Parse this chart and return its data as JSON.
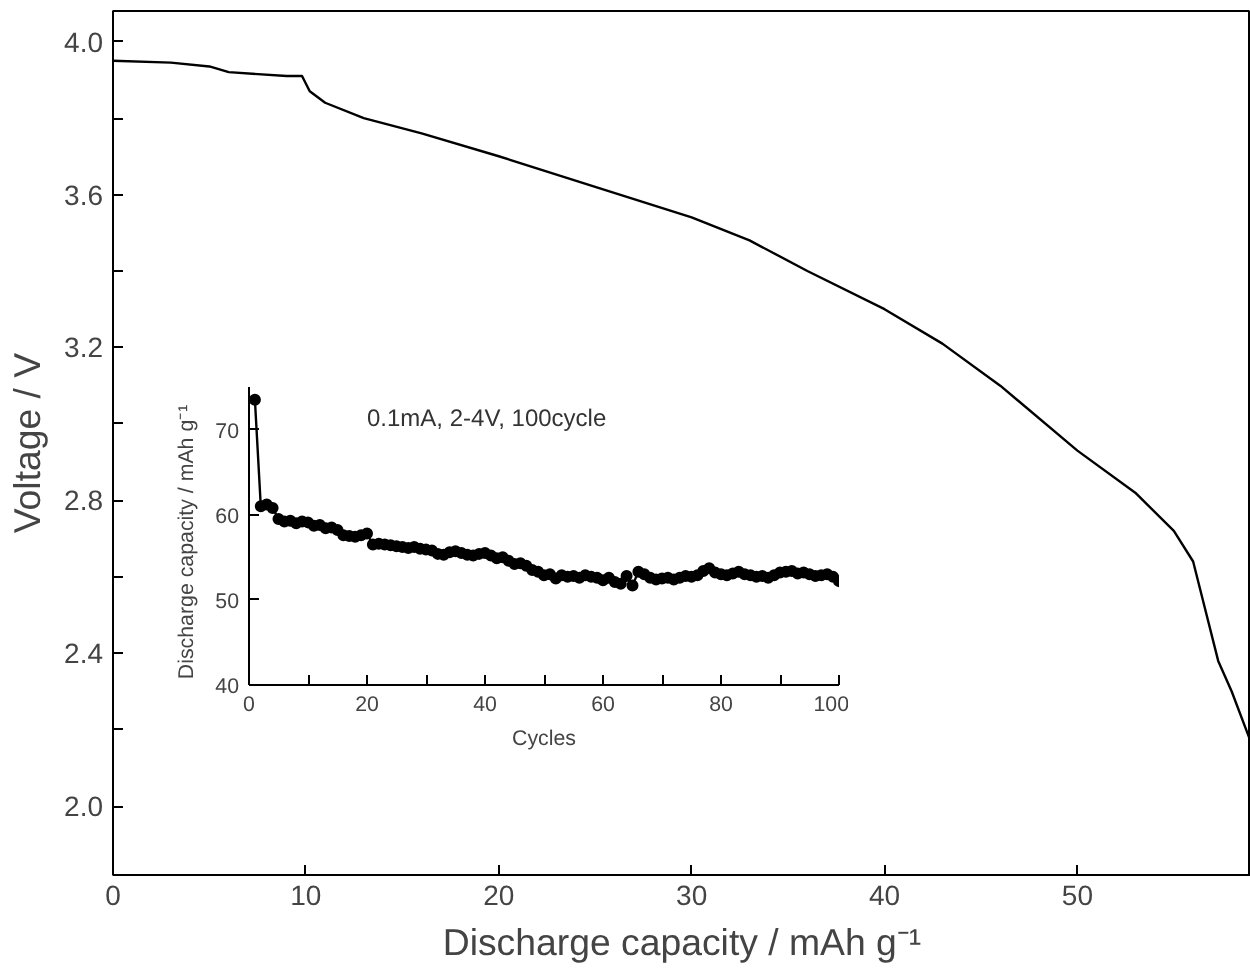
{
  "chart_data": [
    {
      "type": "line",
      "xlabel": "Discharge capacity / mAh g⁻¹",
      "ylabel": "Voltage / V",
      "xlim": [
        0,
        59
      ],
      "ylim": [
        1.82,
        4.08
      ],
      "xticks": [
        0,
        10,
        20,
        30,
        40,
        50
      ],
      "yticks": [
        {
          "value": 2.0,
          "label": "2.0"
        },
        {
          "value": 2.2,
          "label": null
        },
        {
          "value": 2.4,
          "label": "2.4"
        },
        {
          "value": 2.6,
          "label": null
        },
        {
          "value": 2.8,
          "label": "2.8"
        },
        {
          "value": 3.0,
          "label": null
        },
        {
          "value": 3.2,
          "label": "3.2"
        },
        {
          "value": 3.4,
          "label": null
        },
        {
          "value": 3.6,
          "label": "3.6"
        },
        {
          "value": 3.8,
          "label": null
        },
        {
          "value": 4.0,
          "label": "4.0"
        }
      ],
      "grid": false,
      "marker": "none",
      "line_style": "solid",
      "series": [
        {
          "color": "#000000",
          "x": [
            0,
            3,
            5,
            6,
            9,
            9.8,
            10.2,
            11,
            13,
            16,
            20,
            25,
            30,
            33,
            36,
            40,
            43,
            46,
            50,
            53,
            55,
            56,
            56.5,
            57.3,
            58,
            58.9
          ],
          "values": [
            3.95,
            3.945,
            3.935,
            3.92,
            3.91,
            3.91,
            3.87,
            3.84,
            3.8,
            3.76,
            3.7,
            3.62,
            3.54,
            3.48,
            3.4,
            3.3,
            3.21,
            3.1,
            2.93,
            2.82,
            2.72,
            2.64,
            2.54,
            2.38,
            2.3,
            2.18
          ]
        }
      ]
    },
    {
      "type": "line",
      "xlabel": "Cycles",
      "ylabel": "Discharge capacity  /  mAh g⁻¹",
      "annotations": [
        "0.1mA, 2-4V, 100cycle"
      ],
      "xlim": [
        0,
        100
      ],
      "ylim": [
        40,
        75
      ],
      "xticks": [
        0,
        {
          "value": 10,
          "label": null
        },
        20,
        {
          "value": 30,
          "label": null
        },
        40,
        {
          "value": 50,
          "label": null
        },
        60,
        {
          "value": 70,
          "label": null
        },
        80,
        {
          "value": 90,
          "label": null
        },
        100
      ],
      "yticks": [
        40,
        50,
        60,
        70
      ],
      "grid": false,
      "marker": "circle",
      "line_style": "solid",
      "series": [
        {
          "color": "#000000",
          "x": [
            1,
            2,
            3,
            4,
            5,
            6,
            7,
            8,
            9,
            10,
            11,
            12,
            13,
            14,
            15,
            16,
            17,
            18,
            19,
            20,
            21,
            22,
            23,
            24,
            25,
            26,
            27,
            28,
            29,
            30,
            31,
            32,
            33,
            34,
            35,
            36,
            37,
            38,
            39,
            40,
            41,
            42,
            43,
            44,
            45,
            46,
            47,
            48,
            49,
            50,
            51,
            52,
            53,
            54,
            55,
            56,
            57,
            58,
            59,
            60,
            61,
            62,
            63,
            64,
            65,
            66,
            67,
            68,
            69,
            70,
            71,
            72,
            73,
            74,
            75,
            76,
            77,
            78,
            79,
            80,
            81,
            82,
            83,
            84,
            85,
            86,
            87,
            88,
            89,
            90,
            91,
            92,
            93,
            94,
            95,
            96,
            97,
            98,
            99,
            100
          ],
          "values": [
            73.5,
            61,
            61.2,
            60.8,
            59.5,
            59.2,
            59.3,
            59,
            59.2,
            59.1,
            58.7,
            58.8,
            58.4,
            58.5,
            58.2,
            57.6,
            57.5,
            57.4,
            57.6,
            57.8,
            56.5,
            56.6,
            56.5,
            56.4,
            56.3,
            56.2,
            56.1,
            56.2,
            56,
            55.9,
            55.8,
            55.4,
            55.3,
            55.6,
            55.7,
            55.5,
            55.3,
            55.2,
            55.4,
            55.5,
            55.2,
            54.9,
            55.0,
            54.6,
            54.2,
            54.3,
            54.0,
            53.5,
            53.3,
            52.9,
            53.0,
            52.5,
            52.9,
            52.7,
            52.8,
            52.6,
            52.9,
            52.7,
            52.6,
            52.3,
            52.6,
            52.1,
            51.9,
            52.8,
            51.7,
            53.3,
            53.0,
            52.6,
            52.4,
            52.5,
            52.6,
            52.4,
            52.6,
            52.8,
            52.7,
            52.9,
            53.4,
            53.7,
            53.2,
            53.0,
            52.9,
            53.1,
            53.3,
            53.0,
            52.9,
            52.7,
            52.8,
            52.6,
            52.9,
            53.2,
            53.3,
            53.4,
            53.1,
            53.2,
            53.0,
            52.8,
            52.9,
            53.0,
            52.7,
            52.2
          ]
        }
      ]
    }
  ]
}
